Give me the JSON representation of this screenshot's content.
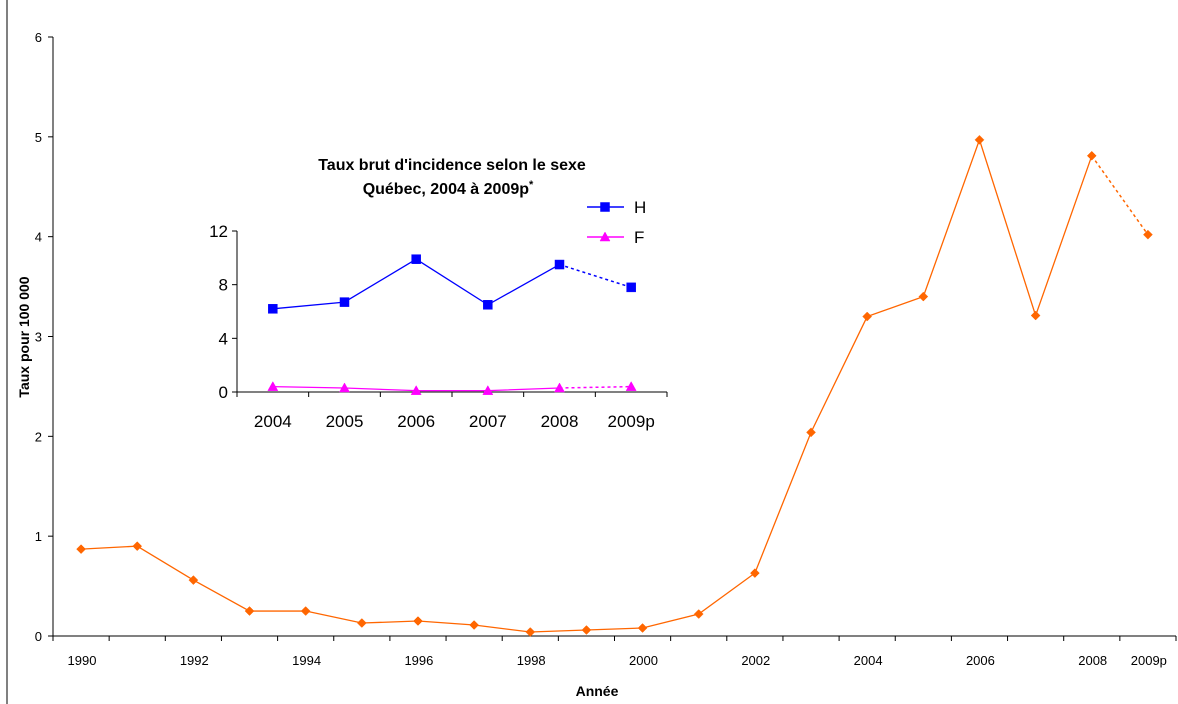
{
  "chart_data": [
    {
      "type": "line",
      "title": "",
      "xlabel": "Année",
      "ylabel": "Taux pour 100 000",
      "ylim": [
        0,
        6
      ],
      "yticks": [
        "0",
        "1",
        "2",
        "3",
        "4",
        "5",
        "6"
      ],
      "x": [
        "1990",
        "1991",
        "1992",
        "1993",
        "1994",
        "1995",
        "1996",
        "1997",
        "1998",
        "1999",
        "2000",
        "2001",
        "2002",
        "2003",
        "2004",
        "2005",
        "2006",
        "2007",
        "2008",
        "2009p"
      ],
      "xtick_labels": [
        "1990",
        "",
        "1992",
        "",
        "1994",
        "",
        "1996",
        "",
        "1998",
        "",
        "2000",
        "",
        "2002",
        "",
        "2004",
        "",
        "2006",
        "",
        "2008",
        "2009p"
      ],
      "series": [
        {
          "values": [
            0.87,
            0.9,
            0.56,
            0.25,
            0.25,
            0.13,
            0.15,
            0.11,
            0.04,
            0.06,
            0.08,
            0.22,
            0.63,
            2.04,
            3.2,
            3.4,
            4.97,
            3.21,
            4.81,
            4.02
          ],
          "color": "#ff6600",
          "marker": "diamond",
          "dashed_last_segment": true
        }
      ],
      "grid": false
    },
    {
      "type": "line",
      "title": "Taux brut d'incidence selon le sexe",
      "subtitle": "Québec, 2004 à 2009p",
      "subtitle_superscript": "*",
      "categories": [
        "2004",
        "2005",
        "2006",
        "2007",
        "2008",
        "2009p"
      ],
      "ylim": [
        0,
        12
      ],
      "yticks": [
        "0",
        "4",
        "8",
        "12"
      ],
      "series": [
        {
          "name": "H",
          "values": [
            6.2,
            6.7,
            9.9,
            6.5,
            9.5,
            7.8
          ],
          "color": "#0000ff",
          "marker": "square",
          "dashed_last_segment": true
        },
        {
          "name": "F",
          "values": [
            0.4,
            0.3,
            0.1,
            0.1,
            0.3,
            0.4
          ],
          "color": "#ff00ff",
          "marker": "triangle",
          "dashed_last_segment": true
        }
      ],
      "legend_position": "top-right",
      "grid": false
    }
  ]
}
